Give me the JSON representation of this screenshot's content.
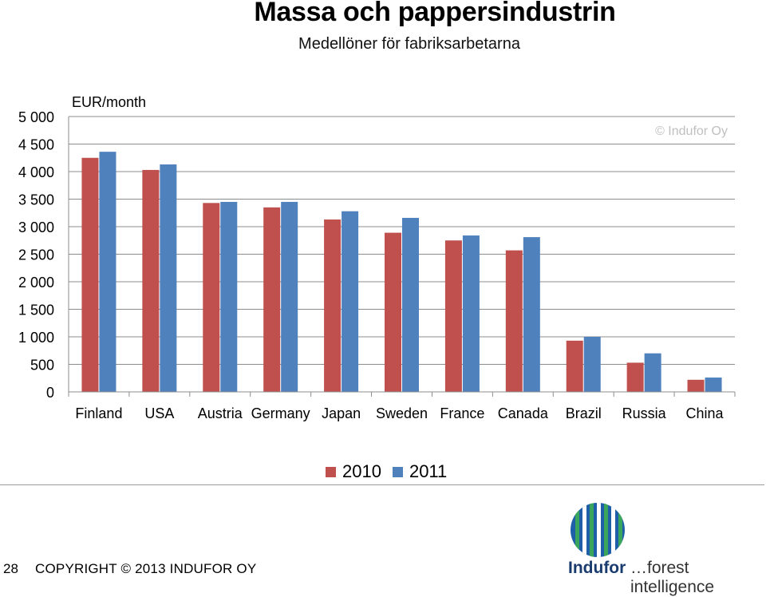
{
  "header": {
    "title": "Massa och pappersindustrin",
    "subtitle": "Medellöner för fabriksarbetarna"
  },
  "chart_data": {
    "type": "bar",
    "unit_label": "EUR/month",
    "watermark": "© Indufor Oy",
    "categories": [
      "Finland",
      "USA",
      "Austria",
      "Germany",
      "Japan",
      "Sweden",
      "France",
      "Canada",
      "Brazil",
      "Russia",
      "China"
    ],
    "series": [
      {
        "name": "2010",
        "color": "#c0504d",
        "values": [
          4250,
          4030,
          3430,
          3350,
          3130,
          2890,
          2750,
          2570,
          930,
          530,
          220
        ]
      },
      {
        "name": "2011",
        "color": "#4f81bd",
        "values": [
          4360,
          4130,
          3450,
          3450,
          3280,
          3160,
          2840,
          2810,
          1000,
          700,
          260
        ]
      }
    ],
    "yticks": [
      "0",
      "500",
      "1 000",
      "1 500",
      "2 000",
      "2 500",
      "3 000",
      "3 500",
      "4 000",
      "4 500",
      "5 000"
    ],
    "ylim": [
      0,
      5000
    ],
    "grid": true,
    "legend_position": "bottom-center"
  },
  "footer": {
    "slide_number": "28",
    "copyright": "COPYRIGHT © 2013 INDUFOR OY",
    "logo_name": "Indufor",
    "logo_tagline": "…forest intelligence"
  }
}
